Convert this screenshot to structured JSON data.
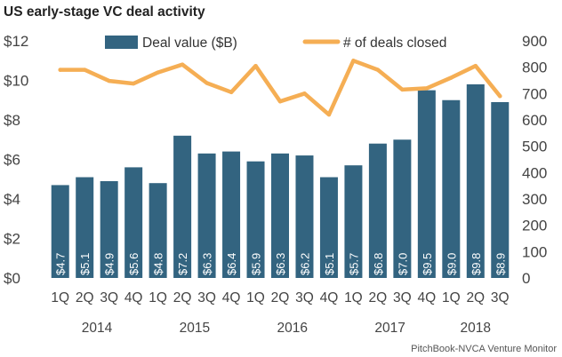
{
  "chart_data": {
    "type": "bar",
    "title": "US early-stage VC deal activity",
    "source": "PitchBook-NVCA Venture Monitor",
    "categories": [
      "1Q",
      "2Q",
      "3Q",
      "4Q",
      "1Q",
      "2Q",
      "3Q",
      "4Q",
      "1Q",
      "2Q",
      "3Q",
      "4Q",
      "1Q",
      "2Q",
      "3Q",
      "4Q",
      "1Q",
      "2Q",
      "3Q"
    ],
    "year_groups": [
      {
        "label": "2014",
        "start": 0,
        "end": 3
      },
      {
        "label": "2015",
        "start": 4,
        "end": 7
      },
      {
        "label": "2016",
        "start": 8,
        "end": 11
      },
      {
        "label": "2017",
        "start": 12,
        "end": 15
      },
      {
        "label": "2018",
        "start": 16,
        "end": 18
      }
    ],
    "series": [
      {
        "name": "Deal value ($B)",
        "kind": "bar",
        "axis": "left",
        "color": "#336480",
        "values": [
          4.7,
          5.1,
          4.9,
          5.6,
          4.8,
          7.2,
          6.3,
          6.4,
          5.9,
          6.3,
          6.2,
          5.1,
          5.7,
          6.8,
          7.0,
          9.5,
          9.0,
          9.8,
          8.9
        ],
        "labels": [
          "$4.7",
          "$5.1",
          "$4.9",
          "$5.6",
          "$4.8",
          "$7.2",
          "$6.3",
          "$6.4",
          "$5.9",
          "$6.3",
          "$6.2",
          "$5.1",
          "$5.7",
          "$6.8",
          "$7.0",
          "$9.5",
          "$9.0",
          "$9.8",
          "$8.9"
        ]
      },
      {
        "name": "# of deals closed",
        "kind": "line",
        "axis": "right",
        "color": "#F5AE54",
        "values": [
          790,
          790,
          748,
          738,
          780,
          810,
          740,
          705,
          805,
          670,
          700,
          620,
          825,
          790,
          715,
          720,
          760,
          805,
          690
        ]
      }
    ],
    "y_left": {
      "ylim": [
        0,
        12
      ],
      "ticks": [
        0,
        2,
        4,
        6,
        8,
        10,
        12
      ],
      "tick_labels": [
        "$0",
        "$2",
        "$4",
        "$6",
        "$8",
        "$10",
        "$12"
      ]
    },
    "y_right": {
      "ylim": [
        0,
        900
      ],
      "ticks": [
        0,
        100,
        200,
        300,
        400,
        500,
        600,
        700,
        800,
        900
      ],
      "tick_labels": [
        "0",
        "100",
        "200",
        "300",
        "400",
        "500",
        "600",
        "700",
        "800",
        "900"
      ]
    },
    "grid": false,
    "legend_placement": "top"
  }
}
